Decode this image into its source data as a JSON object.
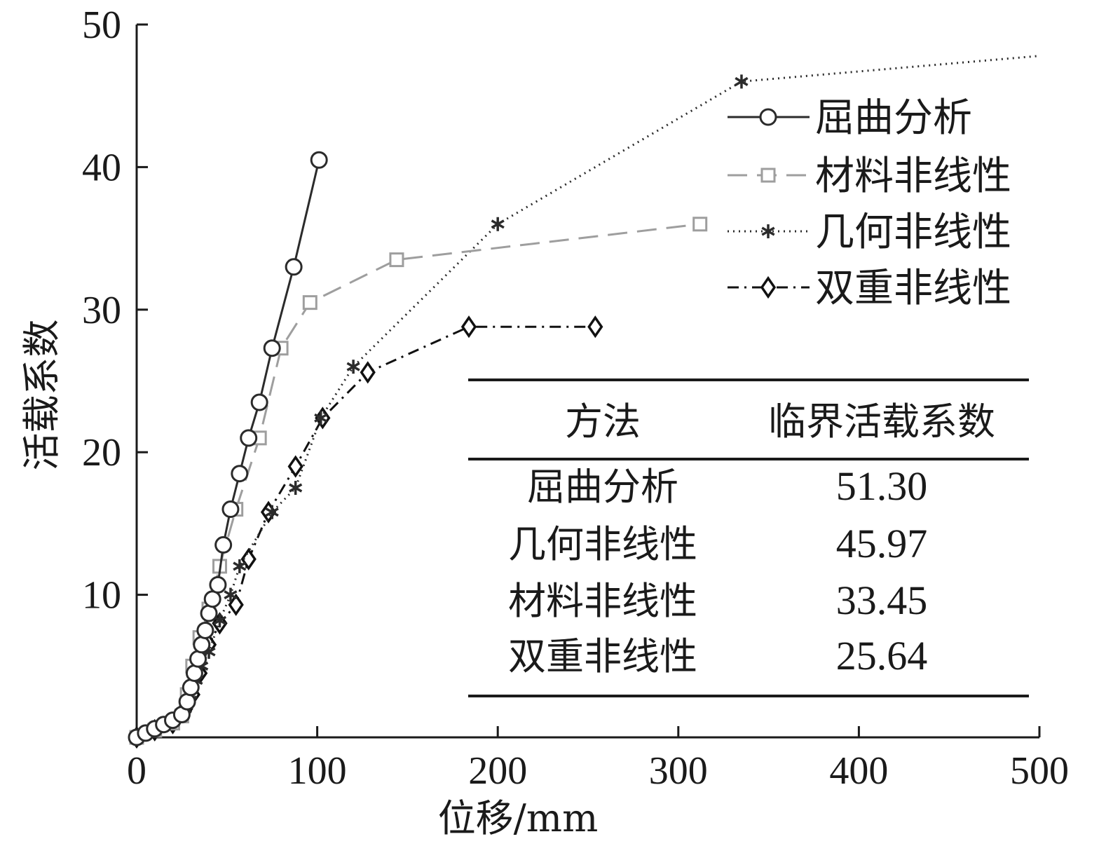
{
  "chart_data": {
    "type": "line",
    "xlabel": "位移/mm",
    "ylabel": "活载系数",
    "xlim": [
      0,
      500
    ],
    "ylim": [
      0,
      50
    ],
    "xticks": [
      0,
      100,
      200,
      300,
      400,
      500
    ],
    "yticks": [
      10,
      20,
      30,
      40,
      50
    ],
    "grid": false,
    "legend_position": "top-right",
    "series": [
      {
        "name": "屈曲分析",
        "color": "#2b2b2b",
        "line_style": "solid",
        "marker": "circle",
        "x": [
          0,
          5,
          10,
          15,
          20,
          25,
          28,
          30,
          32,
          34,
          36,
          38,
          40,
          42,
          45,
          48,
          52,
          57,
          62,
          68,
          75,
          87,
          101
        ],
        "y": [
          0,
          0.3,
          0.6,
          0.9,
          1.2,
          1.6,
          2.5,
          3.5,
          4.5,
          5.5,
          6.5,
          7.5,
          8.7,
          9.7,
          10.7,
          13.5,
          16,
          18.5,
          21,
          23.5,
          27.3,
          33,
          40.5
        ]
      },
      {
        "name": "材料非线性",
        "color": "#9e9e9e",
        "line_style": "dashed",
        "marker": "square",
        "x": [
          0,
          10,
          20,
          25,
          28,
          31,
          35,
          40,
          46,
          55,
          68,
          80,
          96,
          144,
          312
        ],
        "y": [
          0,
          0.5,
          1.0,
          1.5,
          3.0,
          5.0,
          7.0,
          9.0,
          12.0,
          16.0,
          21.0,
          27.3,
          30.5,
          33.5,
          36.0
        ],
        "y_extra_last": 36.0
      },
      {
        "name": "几何非线性",
        "color": "#2b2b2b",
        "line_style": "dotted",
        "marker": "asterisk",
        "x": [
          0,
          10,
          20,
          27,
          30,
          33,
          36,
          40,
          46,
          52,
          57,
          75,
          88,
          102,
          120,
          200,
          335,
          500
        ],
        "y": [
          0,
          0.5,
          1.0,
          2.0,
          3.0,
          4.0,
          5.0,
          6.0,
          8.2,
          10.0,
          12.0,
          15.8,
          17.5,
          22.4,
          26.0,
          36.0,
          46.0,
          47.8
        ],
        "markers_exclude_last": true
      },
      {
        "name": "双重非线性",
        "color": "#111111",
        "line_style": "dashdot",
        "marker": "diamond",
        "x": [
          0,
          10,
          20,
          27,
          31,
          35,
          40,
          46,
          55,
          62,
          73,
          88,
          103,
          128,
          184,
          254
        ],
        "y": [
          0,
          0.5,
          1.0,
          2.0,
          3.0,
          4.5,
          6.5,
          8.0,
          9.3,
          12.5,
          15.8,
          19.0,
          22.4,
          25.6,
          28.8,
          28.8
        ]
      }
    ],
    "table": {
      "headers": [
        "方法",
        "临界活载系数"
      ],
      "rows": [
        [
          "屈曲分析",
          "51.30"
        ],
        [
          "几何非线性",
          "45.97"
        ],
        [
          "材料非线性",
          "33.45"
        ],
        [
          "双重非线性",
          "25.64"
        ]
      ]
    }
  }
}
